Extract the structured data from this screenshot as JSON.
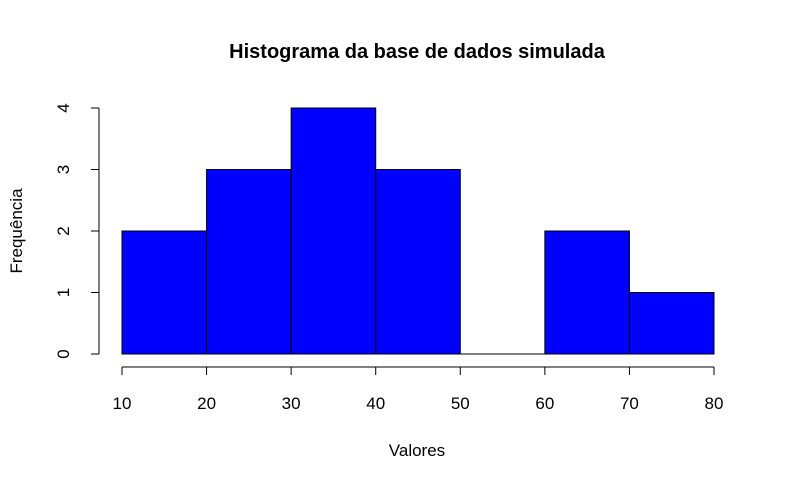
{
  "chart_data": {
    "type": "bar",
    "subtype": "histogram",
    "title": "Histograma da base de dados simulada",
    "xlabel": "Valores",
    "ylabel": "Frequência",
    "bins": [
      {
        "start": 10,
        "end": 20,
        "count": 2
      },
      {
        "start": 20,
        "end": 30,
        "count": 3
      },
      {
        "start": 30,
        "end": 40,
        "count": 4
      },
      {
        "start": 40,
        "end": 50,
        "count": 3
      },
      {
        "start": 50,
        "end": 60,
        "count": 0
      },
      {
        "start": 60,
        "end": 70,
        "count": 2
      },
      {
        "start": 70,
        "end": 80,
        "count": 1
      }
    ],
    "xlim": [
      10,
      80
    ],
    "ylim": [
      0,
      4
    ],
    "xticks": [
      "10",
      "20",
      "30",
      "40",
      "50",
      "60",
      "70",
      "80"
    ],
    "yticks": [
      "0",
      "1",
      "2",
      "3",
      "4"
    ],
    "bar_color": "#0000ff",
    "grid": false
  }
}
